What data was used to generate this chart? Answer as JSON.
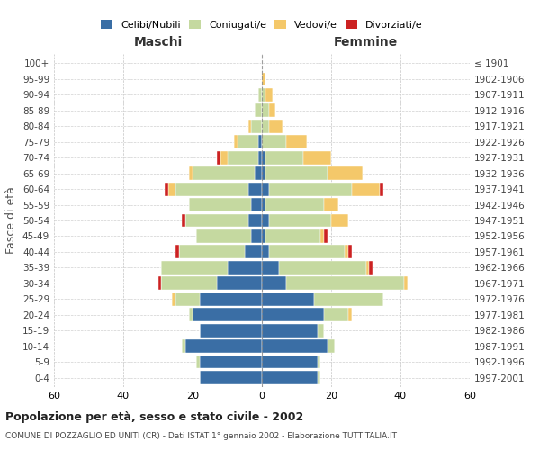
{
  "age_groups": [
    "0-4",
    "5-9",
    "10-14",
    "15-19",
    "20-24",
    "25-29",
    "30-34",
    "35-39",
    "40-44",
    "45-49",
    "50-54",
    "55-59",
    "60-64",
    "65-69",
    "70-74",
    "75-79",
    "80-84",
    "85-89",
    "90-94",
    "95-99",
    "100+"
  ],
  "birth_years": [
    "1997-2001",
    "1992-1996",
    "1987-1991",
    "1982-1986",
    "1977-1981",
    "1972-1976",
    "1967-1971",
    "1962-1966",
    "1957-1961",
    "1952-1956",
    "1947-1951",
    "1942-1946",
    "1937-1941",
    "1932-1936",
    "1927-1931",
    "1922-1926",
    "1917-1921",
    "1912-1916",
    "1907-1911",
    "1902-1906",
    "≤ 1901"
  ],
  "maschi": {
    "celibi": [
      18,
      18,
      22,
      18,
      20,
      18,
      13,
      10,
      5,
      3,
      4,
      3,
      4,
      2,
      1,
      1,
      0,
      0,
      0,
      0,
      0
    ],
    "coniugati": [
      0,
      1,
      1,
      0,
      1,
      7,
      16,
      19,
      19,
      16,
      18,
      18,
      21,
      18,
      9,
      6,
      3,
      2,
      1,
      0,
      0
    ],
    "vedovi": [
      0,
      0,
      0,
      0,
      0,
      1,
      0,
      0,
      0,
      0,
      0,
      0,
      2,
      1,
      2,
      1,
      1,
      0,
      0,
      0,
      0
    ],
    "divorziati": [
      0,
      0,
      0,
      0,
      0,
      0,
      1,
      0,
      1,
      0,
      1,
      0,
      1,
      0,
      1,
      0,
      0,
      0,
      0,
      0,
      0
    ]
  },
  "femmine": {
    "nubili": [
      16,
      16,
      19,
      16,
      18,
      15,
      7,
      5,
      2,
      1,
      2,
      1,
      2,
      1,
      1,
      0,
      0,
      0,
      0,
      0,
      0
    ],
    "coniugate": [
      1,
      1,
      2,
      2,
      7,
      20,
      34,
      25,
      22,
      16,
      18,
      17,
      24,
      18,
      11,
      7,
      2,
      2,
      1,
      0,
      0
    ],
    "vedove": [
      0,
      0,
      0,
      0,
      1,
      0,
      1,
      1,
      1,
      1,
      5,
      4,
      8,
      10,
      8,
      6,
      4,
      2,
      2,
      1,
      0
    ],
    "divorziate": [
      0,
      0,
      0,
      0,
      0,
      0,
      0,
      1,
      1,
      1,
      0,
      0,
      1,
      0,
      0,
      0,
      0,
      0,
      0,
      0,
      0
    ]
  },
  "colors": {
    "celibi_nubili": "#3a6ea5",
    "coniugati": "#c5d9a0",
    "vedovi": "#f4c86a",
    "divorziati": "#cc2222"
  },
  "xlim": 60,
  "title": "Popolazione per età, sesso e stato civile - 2002",
  "subtitle": "COMUNE DI POZZAGLIO ED UNITI (CR) - Dati ISTAT 1° gennaio 2002 - Elaborazione TUTTITALIA.IT",
  "ylabel_left": "Fasce di età",
  "xlabel_left": "Maschi",
  "xlabel_right": "Femmine"
}
